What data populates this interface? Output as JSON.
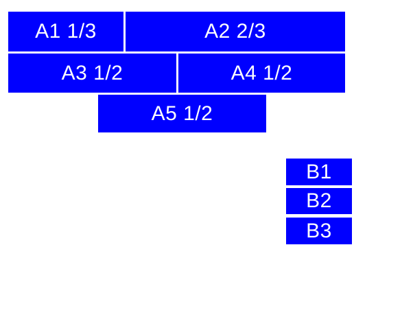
{
  "colors": {
    "box_fill": "#0000ff",
    "box_text": "#ffffff",
    "page_background": "#ffffff"
  },
  "group_a": {
    "boxes": [
      {
        "id": "A1",
        "label": "A1 1/3"
      },
      {
        "id": "A2",
        "label": "A2 2/3"
      },
      {
        "id": "A3",
        "label": "A3 1/2"
      },
      {
        "id": "A4",
        "label": "A4 1/2"
      },
      {
        "id": "A5",
        "label": "A5 1/2"
      }
    ]
  },
  "group_b": {
    "boxes": [
      {
        "id": "B1",
        "label": "B1"
      },
      {
        "id": "B2",
        "label": "B2"
      },
      {
        "id": "B3",
        "label": "B3"
      }
    ]
  }
}
